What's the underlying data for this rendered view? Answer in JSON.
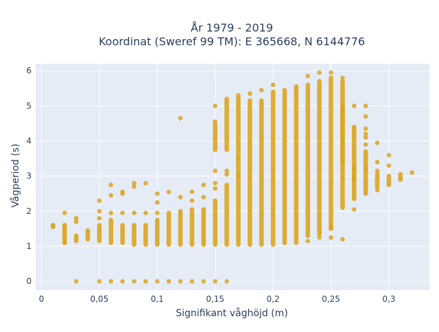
{
  "chart_data": {
    "type": "scatter",
    "title_line1": "År 1979 - 2019",
    "title_line2": "Koordinat (Sweref 99 TM): E 365668, N 6144776",
    "xlabel": "Signifikant våghöjd (m)",
    "ylabel": "Vågperiod (s)",
    "xlim": [
      -0.005,
      0.335
    ],
    "ylim": [
      -0.25,
      6.2
    ],
    "x_ticks": [
      0,
      0.05,
      0.1,
      0.15,
      0.2,
      0.25,
      0.3
    ],
    "x_tick_labels": [
      "0",
      "0,05",
      "0,1",
      "0,15",
      "0,2",
      "0,25",
      "0,3"
    ],
    "y_ticks": [
      0,
      1,
      2,
      3,
      4,
      5,
      6
    ],
    "y_tick_labels": [
      "0",
      "1",
      "2",
      "3",
      "4",
      "5",
      "6"
    ],
    "grid": true,
    "plot_background": "#e5ecf6",
    "marker_color": "#daa520",
    "vertical_ranges": [
      [
        0.01,
        1.55,
        1.6
      ],
      [
        0.02,
        1.1,
        1.6
      ],
      [
        0.03,
        1.15,
        1.3
      ],
      [
        0.04,
        1.2,
        1.4
      ],
      [
        0.05,
        1.15,
        1.6
      ],
      [
        0.06,
        1.1,
        1.75
      ],
      [
        0.07,
        1.1,
        1.6
      ],
      [
        0.08,
        1.05,
        1.6
      ],
      [
        0.09,
        1.05,
        1.6
      ],
      [
        0.1,
        1.05,
        1.75
      ],
      [
        0.11,
        1.05,
        1.95
      ],
      [
        0.12,
        1.05,
        2.0
      ],
      [
        0.13,
        1.05,
        2.05
      ],
      [
        0.14,
        1.05,
        2.05
      ],
      [
        0.15,
        1.05,
        2.3
      ],
      [
        0.16,
        1.05,
        2.75
      ],
      [
        0.17,
        1.05,
        3.0
      ],
      [
        0.18,
        1.05,
        5.15
      ],
      [
        0.19,
        1.05,
        5.15
      ],
      [
        0.2,
        1.05,
        5.4
      ],
      [
        0.21,
        1.1,
        5.45
      ],
      [
        0.22,
        1.1,
        5.55
      ],
      [
        0.23,
        1.3,
        5.6
      ],
      [
        0.24,
        1.35,
        5.7
      ],
      [
        0.25,
        1.5,
        5.8
      ],
      [
        0.26,
        2.1,
        5.7
      ],
      [
        0.27,
        2.35,
        3.25
      ],
      [
        0.28,
        2.5,
        3.2
      ],
      [
        0.29,
        2.7,
        3.05
      ],
      [
        0.3,
        2.75,
        3.0
      ],
      [
        0.31,
        2.9,
        3.05
      ]
    ],
    "upper_ranges": [
      [
        0.15,
        3.75,
        4.55
      ],
      [
        0.16,
        3.75,
        5.2
      ],
      [
        0.17,
        3.0,
        5.3
      ],
      [
        0.26,
        3.4,
        5.0
      ],
      [
        0.27,
        2.9,
        4.4
      ],
      [
        0.28,
        3.2,
        3.7
      ]
    ],
    "zero_points": [
      0.03,
      0.05,
      0.06,
      0.07,
      0.08,
      0.09,
      0.1,
      0.11,
      0.12,
      0.13,
      0.14,
      0.15,
      0.16
    ],
    "points": [
      [
        0.01,
        1.6
      ],
      [
        0.02,
        1.95
      ],
      [
        0.02,
        1.6
      ],
      [
        0.02,
        1.45
      ],
      [
        0.02,
        1.3
      ],
      [
        0.02,
        1.1
      ],
      [
        0.03,
        1.8
      ],
      [
        0.03,
        1.7
      ],
      [
        0.04,
        1.45
      ],
      [
        0.05,
        2.3
      ],
      [
        0.05,
        2.0
      ],
      [
        0.05,
        1.8
      ],
      [
        0.06,
        2.75
      ],
      [
        0.06,
        2.45
      ],
      [
        0.06,
        1.95
      ],
      [
        0.07,
        2.55
      ],
      [
        0.07,
        2.5
      ],
      [
        0.07,
        1.95
      ],
      [
        0.08,
        2.8
      ],
      [
        0.08,
        2.7
      ],
      [
        0.08,
        1.95
      ],
      [
        0.09,
        2.8
      ],
      [
        0.09,
        1.95
      ],
      [
        0.1,
        2.5
      ],
      [
        0.1,
        2.25
      ],
      [
        0.1,
        1.95
      ],
      [
        0.11,
        2.55
      ],
      [
        0.12,
        4.65
      ],
      [
        0.12,
        2.4
      ],
      [
        0.13,
        2.55
      ],
      [
        0.13,
        2.3
      ],
      [
        0.14,
        2.75
      ],
      [
        0.14,
        2.4
      ],
      [
        0.15,
        5.0
      ],
      [
        0.15,
        3.15
      ],
      [
        0.15,
        2.8
      ],
      [
        0.15,
        2.65
      ],
      [
        0.16,
        3.15
      ],
      [
        0.16,
        3.05
      ],
      [
        0.17,
        3.5
      ],
      [
        0.18,
        5.35
      ],
      [
        0.19,
        5.45
      ],
      [
        0.2,
        5.6
      ],
      [
        0.23,
        5.85
      ],
      [
        0.23,
        1.15
      ],
      [
        0.24,
        5.95
      ],
      [
        0.24,
        1.25
      ],
      [
        0.25,
        5.95
      ],
      [
        0.25,
        1.55
      ],
      [
        0.25,
        1.25
      ],
      [
        0.26,
        5.8
      ],
      [
        0.26,
        1.2
      ],
      [
        0.27,
        5.0
      ],
      [
        0.27,
        2.05
      ],
      [
        0.28,
        5.0
      ],
      [
        0.28,
        4.7
      ],
      [
        0.28,
        4.35
      ],
      [
        0.28,
        4.2
      ],
      [
        0.28,
        4.1
      ],
      [
        0.28,
        3.9
      ],
      [
        0.29,
        3.95
      ],
      [
        0.29,
        3.4
      ],
      [
        0.29,
        3.15
      ],
      [
        0.29,
        2.6
      ],
      [
        0.3,
        3.6
      ],
      [
        0.3,
        3.3
      ],
      [
        0.32,
        3.1
      ]
    ]
  }
}
